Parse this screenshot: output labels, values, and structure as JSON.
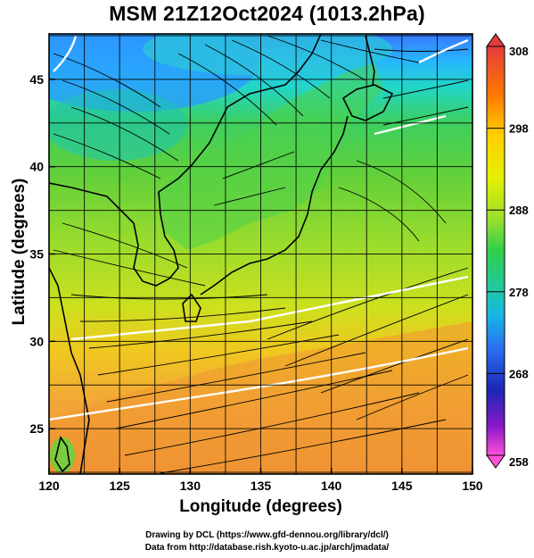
{
  "title": "MSM 21Z12Oct2024 (1013.2hPa)",
  "map": {
    "lon_range": [
      120,
      150
    ],
    "lat_range": [
      22.4,
      47.6
    ],
    "x_ticks": [
      120,
      125,
      130,
      135,
      140,
      145,
      150
    ],
    "y_ticks": [
      25,
      30,
      35,
      40,
      45
    ],
    "xlabel": "Longitude (degrees)",
    "ylabel": "Latitude  (degrees)",
    "grid": true,
    "field": "temperature (K)",
    "overlay": "wind streamlines"
  },
  "colorbar": {
    "min": 258,
    "max": 308,
    "tick_labels": [
      "308",
      "298",
      "288",
      "278",
      "268",
      "258"
    ],
    "tick_values": [
      308,
      298,
      288,
      278,
      268,
      258
    ],
    "colors": [
      "#e23c3c",
      "#ff7a00",
      "#ffd000",
      "#e6f000",
      "#9be02c",
      "#2fcf4a",
      "#20c8a8",
      "#18b4e8",
      "#2a6ef0",
      "#1a28b4",
      "#8a18c8",
      "#ff50d8"
    ]
  },
  "credits": {
    "line1": "Drawing by DCL (https://www.gfd-dennou.org/library/dcl/)",
    "line2": "Data from http://database.rish.kyoto-u.ac.jp/arch/jmadata/"
  }
}
